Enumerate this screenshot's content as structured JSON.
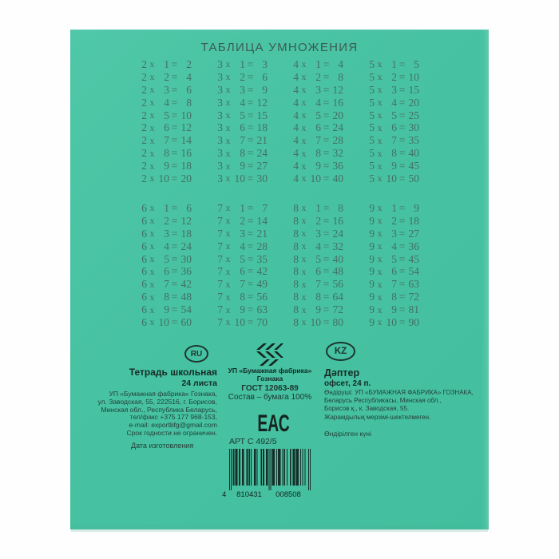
{
  "title": "ТАБЛИЦА УМНОЖЕНИЯ",
  "colors": {
    "cover": "#48c3a3",
    "table_text": "#456f68",
    "ink": "#1e342f"
  },
  "multiplication_table": {
    "times_sign": "х",
    "equals_sign": "=",
    "multipliers": [
      1,
      2,
      3,
      4,
      5,
      6,
      7,
      8,
      9,
      10
    ],
    "groups": [
      {
        "columns": [
          {
            "factor": 2,
            "products": [
              2,
              4,
              6,
              8,
              10,
              12,
              14,
              16,
              18,
              20
            ]
          },
          {
            "factor": 3,
            "products": [
              3,
              6,
              9,
              12,
              15,
              18,
              21,
              24,
              27,
              30
            ]
          },
          {
            "factor": 4,
            "products": [
              4,
              8,
              12,
              16,
              20,
              24,
              28,
              32,
              36,
              40
            ]
          },
          {
            "factor": 5,
            "products": [
              5,
              10,
              15,
              20,
              25,
              30,
              35,
              40,
              45,
              50
            ]
          }
        ]
      },
      {
        "columns": [
          {
            "factor": 6,
            "products": [
              6,
              12,
              18,
              24,
              30,
              36,
              42,
              48,
              54,
              60
            ]
          },
          {
            "factor": 7,
            "products": [
              7,
              14,
              21,
              28,
              35,
              42,
              49,
              56,
              63,
              70
            ]
          },
          {
            "factor": 8,
            "products": [
              8,
              16,
              24,
              32,
              40,
              48,
              56,
              64,
              72,
              80
            ]
          },
          {
            "factor": 9,
            "products": [
              9,
              18,
              27,
              36,
              45,
              54,
              63,
              72,
              81,
              90
            ]
          }
        ]
      }
    ]
  },
  "badges": {
    "ru": "RU",
    "kz": "KZ"
  },
  "left_column": {
    "title": "Тетрадь школьная",
    "subtitle": "24 листа",
    "lines": [
      "УП «Бумажная фабрика» Гознака,",
      "ул. Заводская, 55, 222516, г. Борисов,",
      "Минская обл., Республика Беларусь,",
      "тел/факс +375 177 968-153,",
      "e-mail: exportbfg@gmail.com",
      "Срок годности не ограничен."
    ],
    "date_label": "Дата изготовления"
  },
  "center_column": {
    "manufacturer_line1": "УП «Бумажная фабрика»",
    "manufacturer_line2": "Гознака",
    "gost": "ГОСТ 12063-89",
    "composition": "Состав – бумага 100%",
    "eac_mark": "ЕАС",
    "article": "АРТ С 492/5"
  },
  "barcode": {
    "value": "4810431008508",
    "display": [
      "4",
      "810431",
      "008508"
    ]
  },
  "right_column": {
    "title": "Дәптер",
    "subtitle": "офсет, 24 п.",
    "lines": [
      "Өндіруші: УП «БУМАЖНАЯ ФАБРИКА» ГОЗНАКА,",
      "Беларусь Республикасы, Минская обл.,",
      "Борисов қ., к. Заводская, 55.",
      "Жарамдылық мерзімі-шектелмеген."
    ],
    "date_label": "Өндірілген күні"
  }
}
